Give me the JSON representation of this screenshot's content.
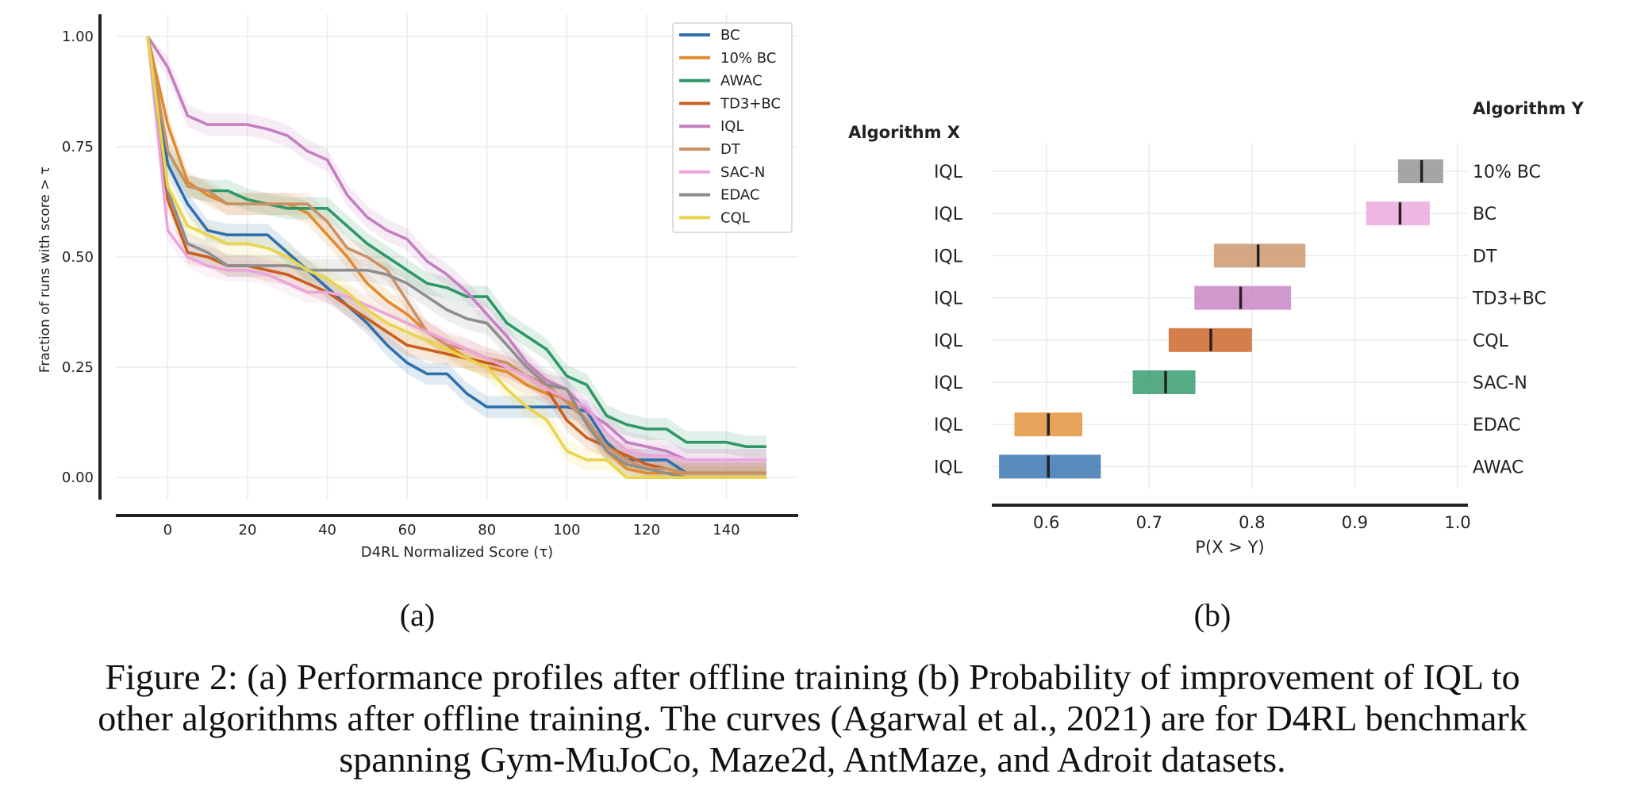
{
  "colors": {
    "BC": "#2f6fae",
    "10% BC": "#e08c2f",
    "AWAC": "#2e9767",
    "TD3+BC": "#c95e1e",
    "IQL": "#c57fc0",
    "DT": "#c99166",
    "SAC-N": "#eaa5dc",
    "EDAC": "#8e8e8e",
    "CQL": "#ead44c"
  },
  "chart_data": [
    {
      "type": "line",
      "xlabel": "D4RL Normalized Score (τ)",
      "ylabel": "Fraction of runs with score > τ",
      "xlim": [
        -13,
        158
      ],
      "ylim": [
        -0.05,
        1.05
      ],
      "xticks": [
        "0",
        "20",
        "40",
        "60",
        "80",
        "100",
        "120",
        "140"
      ],
      "yticks": [
        "0.00",
        "0.25",
        "0.50",
        "0.75",
        "1.00"
      ],
      "grid": true,
      "legend_position": "top-right",
      "panel_label": "(a)",
      "series": [
        {
          "name": "BC",
          "x": [
            -5,
            0,
            5,
            10,
            15,
            20,
            25,
            30,
            35,
            40,
            45,
            50,
            55,
            60,
            65,
            70,
            75,
            80,
            85,
            90,
            95,
            100,
            105,
            110,
            115,
            120,
            125,
            130,
            135,
            140,
            145,
            150
          ],
          "y": [
            1.0,
            0.71,
            0.62,
            0.56,
            0.55,
            0.55,
            0.55,
            0.51,
            0.47,
            0.43,
            0.39,
            0.35,
            0.3,
            0.26,
            0.235,
            0.235,
            0.19,
            0.16,
            0.16,
            0.16,
            0.16,
            0.16,
            0.15,
            0.08,
            0.04,
            0.04,
            0.04,
            0.01,
            0.01,
            0.01,
            0.01,
            0.01
          ]
        },
        {
          "name": "10% BC",
          "x": [
            -5,
            0,
            5,
            10,
            15,
            20,
            25,
            30,
            35,
            40,
            45,
            50,
            55,
            60,
            65,
            70,
            75,
            80,
            85,
            90,
            95,
            100,
            105,
            110,
            115,
            120,
            125,
            130,
            135,
            140,
            145,
            150
          ],
          "y": [
            1.0,
            0.8,
            0.67,
            0.64,
            0.62,
            0.62,
            0.62,
            0.62,
            0.6,
            0.55,
            0.5,
            0.44,
            0.4,
            0.37,
            0.33,
            0.3,
            0.27,
            0.25,
            0.24,
            0.21,
            0.19,
            0.18,
            0.13,
            0.06,
            0.02,
            0.01,
            0.01,
            0.01,
            0.01,
            0.01,
            0.01,
            0.01
          ]
        },
        {
          "name": "AWAC",
          "x": [
            -5,
            0,
            5,
            10,
            15,
            20,
            25,
            30,
            35,
            40,
            45,
            50,
            55,
            60,
            65,
            70,
            75,
            80,
            85,
            90,
            95,
            100,
            105,
            110,
            115,
            120,
            125,
            130,
            135,
            140,
            145,
            150
          ],
          "y": [
            1.0,
            0.74,
            0.66,
            0.65,
            0.65,
            0.63,
            0.62,
            0.61,
            0.61,
            0.61,
            0.57,
            0.53,
            0.5,
            0.47,
            0.44,
            0.43,
            0.41,
            0.41,
            0.35,
            0.32,
            0.29,
            0.23,
            0.21,
            0.14,
            0.12,
            0.11,
            0.11,
            0.08,
            0.08,
            0.08,
            0.07,
            0.07
          ]
        },
        {
          "name": "TD3+BC",
          "x": [
            -5,
            0,
            5,
            10,
            15,
            20,
            25,
            30,
            35,
            40,
            45,
            50,
            55,
            60,
            65,
            70,
            75,
            80,
            85,
            90,
            95,
            100,
            105,
            110,
            115,
            120,
            125,
            130,
            135,
            140,
            145,
            150
          ],
          "y": [
            1.0,
            0.63,
            0.51,
            0.5,
            0.48,
            0.48,
            0.47,
            0.46,
            0.44,
            0.42,
            0.39,
            0.36,
            0.33,
            0.3,
            0.29,
            0.28,
            0.27,
            0.26,
            0.25,
            0.23,
            0.2,
            0.13,
            0.09,
            0.07,
            0.05,
            0.03,
            0.02,
            0.01,
            0.01,
            0.01,
            0.01,
            0.01
          ]
        },
        {
          "name": "IQL",
          "x": [
            -5,
            0,
            5,
            10,
            15,
            20,
            25,
            30,
            35,
            40,
            45,
            50,
            55,
            60,
            65,
            70,
            75,
            80,
            85,
            90,
            95,
            100,
            105,
            110,
            115,
            120,
            125,
            130,
            135,
            140,
            145,
            150
          ],
          "y": [
            1.0,
            0.93,
            0.82,
            0.8,
            0.8,
            0.8,
            0.79,
            0.775,
            0.74,
            0.72,
            0.64,
            0.59,
            0.56,
            0.54,
            0.49,
            0.46,
            0.42,
            0.37,
            0.32,
            0.26,
            0.22,
            0.2,
            0.15,
            0.12,
            0.08,
            0.07,
            0.06,
            0.04,
            0.04,
            0.04,
            0.04,
            0.04
          ]
        },
        {
          "name": "DT",
          "x": [
            -5,
            0,
            5,
            10,
            15,
            20,
            25,
            30,
            35,
            40,
            45,
            50,
            55,
            60,
            65,
            70,
            75,
            80,
            85,
            90,
            95,
            100,
            105,
            110,
            115,
            120,
            125,
            130,
            135,
            140,
            145,
            150
          ],
          "y": [
            1.0,
            0.74,
            0.66,
            0.65,
            0.62,
            0.62,
            0.62,
            0.62,
            0.62,
            0.58,
            0.52,
            0.5,
            0.47,
            0.4,
            0.33,
            0.3,
            0.29,
            0.27,
            0.26,
            0.23,
            0.21,
            0.17,
            0.13,
            0.07,
            0.04,
            0.02,
            0.02,
            0.01,
            0.01,
            0.01,
            0.01,
            0.01
          ]
        },
        {
          "name": "SAC-N",
          "x": [
            -5,
            0,
            5,
            10,
            15,
            20,
            25,
            30,
            35,
            40,
            45,
            50,
            55,
            60,
            65,
            70,
            75,
            80,
            85,
            90,
            95,
            100,
            105,
            110,
            115,
            120,
            125,
            130,
            135,
            140,
            145,
            150
          ],
          "y": [
            1.0,
            0.56,
            0.5,
            0.48,
            0.47,
            0.47,
            0.46,
            0.44,
            0.42,
            0.42,
            0.41,
            0.39,
            0.37,
            0.35,
            0.33,
            0.31,
            0.29,
            0.27,
            0.25,
            0.23,
            0.2,
            0.18,
            0.16,
            0.1,
            0.06,
            0.05,
            0.05,
            0.04,
            0.04,
            0.04,
            0.04,
            0.04
          ]
        },
        {
          "name": "EDAC",
          "x": [
            -5,
            0,
            5,
            10,
            15,
            20,
            25,
            30,
            35,
            40,
            45,
            50,
            55,
            60,
            65,
            70,
            75,
            80,
            85,
            90,
            95,
            100,
            105,
            110,
            115,
            120,
            125,
            130,
            135,
            140,
            145,
            150
          ],
          "y": [
            1.0,
            0.65,
            0.53,
            0.51,
            0.48,
            0.48,
            0.48,
            0.48,
            0.47,
            0.47,
            0.47,
            0.47,
            0.46,
            0.44,
            0.41,
            0.38,
            0.36,
            0.35,
            0.3,
            0.25,
            0.21,
            0.2,
            0.12,
            0.06,
            0.03,
            0.02,
            0.01,
            0.0,
            0.0,
            0.0,
            0.0,
            0.0
          ]
        },
        {
          "name": "CQL",
          "x": [
            -5,
            0,
            5,
            10,
            15,
            20,
            25,
            30,
            35,
            40,
            45,
            50,
            55,
            60,
            65,
            70,
            75,
            80,
            85,
            90,
            95,
            100,
            105,
            110,
            115,
            120,
            125,
            130,
            135,
            140,
            145,
            150
          ],
          "y": [
            1.0,
            0.66,
            0.57,
            0.55,
            0.53,
            0.53,
            0.52,
            0.5,
            0.47,
            0.45,
            0.42,
            0.38,
            0.35,
            0.33,
            0.31,
            0.29,
            0.27,
            0.25,
            0.2,
            0.16,
            0.13,
            0.06,
            0.04,
            0.04,
            0.0,
            0.0,
            0.0,
            0.0,
            0.0,
            0.0,
            0.0,
            0.0
          ]
        }
      ]
    },
    {
      "type": "bar",
      "xlabel": "P(X > Y)",
      "xlim": [
        0.547,
        1.01
      ],
      "xticks": [
        "0.6",
        "0.7",
        "0.8",
        "0.9",
        "1.0"
      ],
      "grid": true,
      "left_header": "Algorithm X",
      "right_header": "Algorithm Y",
      "panel_label": "(b)",
      "rows": [
        {
          "x": "IQL",
          "y": "10% BC",
          "low": 0.942,
          "high": 0.986,
          "mean": 0.965,
          "color_key": "EDAC"
        },
        {
          "x": "IQL",
          "y": "BC",
          "low": 0.911,
          "high": 0.973,
          "mean": 0.944,
          "color_key": "SAC-N"
        },
        {
          "x": "IQL",
          "y": "DT",
          "low": 0.763,
          "high": 0.852,
          "mean": 0.806,
          "color_key": "DT"
        },
        {
          "x": "IQL",
          "y": "TD3+BC",
          "low": 0.744,
          "high": 0.838,
          "mean": 0.789,
          "color_key": "IQL"
        },
        {
          "x": "IQL",
          "y": "CQL",
          "low": 0.719,
          "high": 0.8,
          "mean": 0.76,
          "color_key": "TD3+BC"
        },
        {
          "x": "IQL",
          "y": "SAC-N",
          "low": 0.684,
          "high": 0.745,
          "mean": 0.716,
          "color_key": "AWAC"
        },
        {
          "x": "IQL",
          "y": "EDAC",
          "low": 0.569,
          "high": 0.635,
          "mean": 0.602,
          "color_key": "10% BC"
        },
        {
          "x": "IQL",
          "y": "AWAC",
          "low": 0.554,
          "high": 0.653,
          "mean": 0.602,
          "color_key": "BC"
        }
      ]
    }
  ],
  "caption": {
    "line1": "Figure 2: (a) Performance profiles after offline training (b) Probability of improvement of IQL to",
    "line2": "other algorithms after offline training. The curves (Agarwal et al., 2021) are for D4RL benchmark",
    "line3": "spanning Gym-MuJoCo, Maze2d, AntMaze, and Adroit datasets."
  }
}
